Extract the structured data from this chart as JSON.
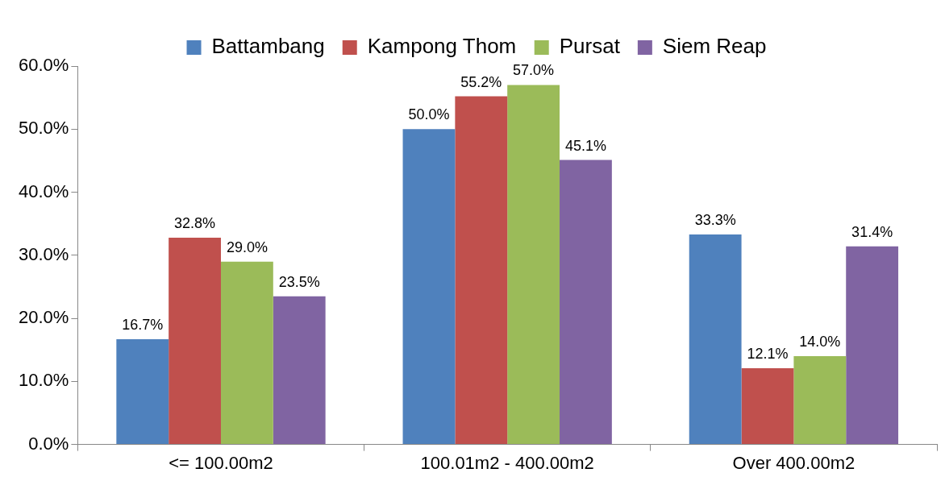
{
  "chart_data": {
    "type": "bar",
    "categories": [
      "<= 100.00m2",
      "100.01m2 - 400.00m2",
      "Over 400.00m2"
    ],
    "series": [
      {
        "name": "Battambang",
        "color": "#4f81bd",
        "values": [
          16.7,
          50.0,
          33.3
        ],
        "value_labels": [
          "16.7%",
          "50.0%",
          "33.3%"
        ]
      },
      {
        "name": "Kampong Thom",
        "color": "#c0504d",
        "values": [
          32.8,
          55.2,
          12.1
        ],
        "value_labels": [
          "32.8%",
          "55.2%",
          "12.1%"
        ]
      },
      {
        "name": "Pursat",
        "color": "#9bbb59",
        "values": [
          29.0,
          57.0,
          14.0
        ],
        "value_labels": [
          "29.0%",
          "57.0%",
          "14.0%"
        ]
      },
      {
        "name": "Siem Reap",
        "color": "#8064a2",
        "values": [
          23.5,
          45.1,
          31.4
        ],
        "value_labels": [
          "23.5%",
          "45.1%",
          "31.4%"
        ]
      }
    ],
    "ylim": [
      0,
      60
    ],
    "yticks": [
      {
        "value": 0,
        "label": "0.0%"
      },
      {
        "value": 10,
        "label": "10.0%"
      },
      {
        "value": 20,
        "label": "20.0%"
      },
      {
        "value": 30,
        "label": "30.0%"
      },
      {
        "value": 40,
        "label": "40.0%"
      },
      {
        "value": 50,
        "label": "50.0%"
      },
      {
        "value": 60,
        "label": "60.0%"
      }
    ],
    "grid": false,
    "legend": "top"
  }
}
